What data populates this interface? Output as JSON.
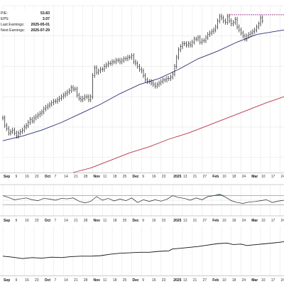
{
  "info": {
    "rows": [
      {
        "label": "P/E:",
        "value": "53.83"
      },
      {
        "label": "EPS:",
        "value": "3.07"
      },
      {
        "label": "Last Earnings:",
        "value": "2025-05-01"
      },
      {
        "label": "Next Earnings:",
        "value": "2025-07-29"
      }
    ]
  },
  "axis_ticks": [
    {
      "t": 0,
      "label": "Sep",
      "bold": true
    },
    {
      "t": 6,
      "label": "9",
      "bold": false
    },
    {
      "t": 11,
      "label": "16",
      "bold": false
    },
    {
      "t": 16,
      "label": "23",
      "bold": false
    },
    {
      "t": 21,
      "label": "Oct",
      "bold": true
    },
    {
      "t": 26,
      "label": "7",
      "bold": false
    },
    {
      "t": 31,
      "label": "14",
      "bold": false
    },
    {
      "t": 36,
      "label": "21",
      "bold": false
    },
    {
      "t": 41,
      "label": "28",
      "bold": false
    },
    {
      "t": 46,
      "label": "Nov",
      "bold": true
    },
    {
      "t": 51,
      "label": "11",
      "bold": false
    },
    {
      "t": 56,
      "label": "18",
      "bold": false
    },
    {
      "t": 61,
      "label": "25",
      "bold": false
    },
    {
      "t": 66,
      "label": "Dec",
      "bold": true
    },
    {
      "t": 71,
      "label": "9",
      "bold": false
    },
    {
      "t": 76,
      "label": "16",
      "bold": false
    },
    {
      "t": 81,
      "label": "23",
      "bold": false
    },
    {
      "t": 87,
      "label": "2025",
      "bold": true
    },
    {
      "t": 92,
      "label": "13",
      "bold": false
    },
    {
      "t": 97,
      "label": "21",
      "bold": false
    },
    {
      "t": 102,
      "label": "27",
      "bold": false
    },
    {
      "t": 107,
      "label": "Feb",
      "bold": true
    },
    {
      "t": 112,
      "label": "10",
      "bold": false
    },
    {
      "t": 117,
      "label": "18",
      "bold": false
    },
    {
      "t": 122,
      "label": "24",
      "bold": false
    },
    {
      "t": 127,
      "label": "Mar",
      "bold": true
    },
    {
      "t": 132,
      "label": "10",
      "bold": false
    },
    {
      "t": 137,
      "label": "17",
      "bold": false
    },
    {
      "t": 142,
      "label": "24",
      "bold": false
    }
  ],
  "colors": {
    "bars": "#111111",
    "sma_short": "#2b2f7a",
    "sma_long": "#c0304a",
    "resistance": "#b0309a",
    "rsi_line": "#222222",
    "rsi_fill": "#3aa84a",
    "grid": "#e6e6e6"
  },
  "chart_data": [
    {
      "type": "ohlc",
      "panel": "price",
      "x_unit": "trading_day",
      "x_range": [
        0,
        144
      ],
      "ylim": [
        0,
        110
      ],
      "grid": true,
      "ohlc_bars": [
        [
          0,
          36
        ],
        [
          1,
          31
        ],
        [
          2,
          29
        ],
        [
          3,
          26
        ],
        [
          4,
          27
        ],
        [
          5,
          28
        ],
        [
          6,
          26
        ],
        [
          7,
          24
        ],
        [
          8,
          26
        ],
        [
          9,
          27
        ],
        [
          10,
          28
        ],
        [
          11,
          30
        ],
        [
          12,
          31
        ],
        [
          13,
          33
        ],
        [
          14,
          35
        ],
        [
          15,
          34
        ],
        [
          16,
          36
        ],
        [
          17,
          37
        ],
        [
          18,
          38
        ],
        [
          19,
          39
        ],
        [
          20,
          40
        ],
        [
          21,
          42
        ],
        [
          22,
          43
        ],
        [
          23,
          44
        ],
        [
          24,
          45
        ],
        [
          25,
          46
        ],
        [
          26,
          47
        ],
        [
          27,
          47
        ],
        [
          28,
          48
        ],
        [
          29,
          49
        ],
        [
          30,
          50
        ],
        [
          31,
          51
        ],
        [
          32,
          52
        ],
        [
          33,
          53
        ],
        [
          34,
          54
        ],
        [
          35,
          56
        ],
        [
          36,
          55
        ],
        [
          37,
          55
        ],
        [
          38,
          51
        ],
        [
          39,
          49
        ],
        [
          40,
          48
        ],
        [
          41,
          49
        ],
        [
          42,
          50
        ],
        [
          43,
          50
        ],
        [
          44,
          48
        ],
        [
          45,
          50
        ],
        [
          46,
          64
        ],
        [
          47,
          69
        ],
        [
          48,
          66
        ],
        [
          49,
          67
        ],
        [
          50,
          68
        ],
        [
          51,
          68
        ],
        [
          52,
          70
        ],
        [
          53,
          71
        ],
        [
          54,
          72
        ],
        [
          55,
          72
        ],
        [
          56,
          73
        ],
        [
          57,
          73
        ],
        [
          58,
          74
        ],
        [
          59,
          74
        ],
        [
          60,
          73
        ],
        [
          61,
          74
        ],
        [
          62,
          75
        ],
        [
          63,
          75
        ],
        [
          64,
          76
        ],
        [
          65,
          76
        ],
        [
          66,
          77
        ],
        [
          67,
          73
        ],
        [
          68,
          72
        ],
        [
          69,
          70
        ],
        [
          70,
          68
        ],
        [
          71,
          67
        ],
        [
          72,
          64
        ],
        [
          73,
          61
        ],
        [
          74,
          60
        ],
        [
          75,
          60
        ],
        [
          76,
          59
        ],
        [
          77,
          58
        ],
        [
          78,
          57
        ],
        [
          79,
          58
        ],
        [
          80,
          59
        ],
        [
          81,
          60
        ],
        [
          82,
          61
        ],
        [
          83,
          61
        ],
        [
          84,
          62
        ],
        [
          85,
          62
        ],
        [
          86,
          63
        ],
        [
          87,
          65
        ],
        [
          88,
          70
        ],
        [
          89,
          76
        ],
        [
          90,
          81
        ],
        [
          91,
          83
        ],
        [
          92,
          85
        ],
        [
          93,
          85
        ],
        [
          94,
          84
        ],
        [
          95,
          85
        ],
        [
          96,
          84
        ],
        [
          97,
          86
        ],
        [
          98,
          88
        ],
        [
          99,
          88
        ],
        [
          100,
          89
        ],
        [
          101,
          86
        ],
        [
          102,
          87
        ],
        [
          103,
          87
        ],
        [
          104,
          89
        ],
        [
          105,
          91
        ],
        [
          106,
          92
        ],
        [
          107,
          93
        ],
        [
          108,
          94
        ],
        [
          109,
          96
        ],
        [
          110,
          100
        ],
        [
          111,
          103
        ],
        [
          112,
          102
        ],
        [
          113,
          100
        ],
        [
          114,
          99
        ],
        [
          115,
          103
        ],
        [
          116,
          100
        ],
        [
          117,
          98
        ],
        [
          118,
          99
        ],
        [
          119,
          101
        ],
        [
          120,
          96
        ],
        [
          121,
          94
        ],
        [
          122,
          92
        ],
        [
          123,
          90
        ],
        [
          124,
          88
        ],
        [
          125,
          90
        ],
        [
          126,
          91
        ],
        [
          127,
          92
        ],
        [
          128,
          93
        ],
        [
          129,
          94
        ],
        [
          130,
          96
        ],
        [
          131,
          98
        ],
        [
          132,
          102
        ],
        [
          133,
          100
        ]
      ],
      "moving_averages": [
        {
          "key": "sma_short",
          "points": [
            [
              0,
              21
            ],
            [
              10,
              24
            ],
            [
              20,
              28
            ],
            [
              30,
              33
            ],
            [
              40,
              39
            ],
            [
              50,
              45
            ],
            [
              60,
              52
            ],
            [
              70,
              58
            ],
            [
              80,
              62
            ],
            [
              90,
              68
            ],
            [
              100,
              75
            ],
            [
              110,
              80
            ],
            [
              120,
              86
            ],
            [
              130,
              91
            ],
            [
              144,
              94
            ]
          ]
        },
        {
          "key": "sma_long",
          "points": [
            [
              36,
              0
            ],
            [
              45,
              3
            ],
            [
              55,
              8
            ],
            [
              65,
              13
            ],
            [
              75,
              17
            ],
            [
              85,
              22
            ],
            [
              95,
              26
            ],
            [
              105,
              31
            ],
            [
              115,
              36
            ],
            [
              125,
              41
            ],
            [
              135,
              46
            ],
            [
              144,
              50
            ]
          ]
        }
      ],
      "resistance": {
        "x": [
          116,
          144
        ],
        "y": 104
      }
    },
    {
      "type": "line",
      "panel": "oscillator",
      "x_unit": "trading_day",
      "ylim": [
        0,
        100
      ],
      "levels": [
        70,
        50,
        30
      ],
      "points": [
        [
          0,
          70
        ],
        [
          3,
          62
        ],
        [
          6,
          52
        ],
        [
          9,
          56
        ],
        [
          12,
          60
        ],
        [
          15,
          52
        ],
        [
          18,
          48
        ],
        [
          21,
          58
        ],
        [
          24,
          55
        ],
        [
          27,
          50
        ],
        [
          30,
          58
        ],
        [
          33,
          56
        ],
        [
          36,
          60
        ],
        [
          39,
          46
        ],
        [
          42,
          38
        ],
        [
          45,
          45
        ],
        [
          48,
          66
        ],
        [
          51,
          50
        ],
        [
          54,
          58
        ],
        [
          57,
          47
        ],
        [
          60,
          55
        ],
        [
          63,
          48
        ],
        [
          66,
          60
        ],
        [
          69,
          40
        ],
        [
          72,
          52
        ],
        [
          75,
          45
        ],
        [
          78,
          52
        ],
        [
          81,
          46
        ],
        [
          84,
          54
        ],
        [
          87,
          70
        ],
        [
          90,
          62
        ],
        [
          93,
          58
        ],
        [
          96,
          50
        ],
        [
          99,
          60
        ],
        [
          102,
          52
        ],
        [
          105,
          66
        ],
        [
          108,
          70
        ],
        [
          111,
          76
        ],
        [
          114,
          64
        ],
        [
          117,
          48
        ],
        [
          120,
          40
        ],
        [
          123,
          36
        ],
        [
          126,
          42
        ],
        [
          129,
          44
        ],
        [
          132,
          48
        ],
        [
          135,
          52
        ],
        [
          138,
          40
        ],
        [
          141,
          46
        ],
        [
          144,
          50
        ]
      ]
    },
    {
      "type": "line",
      "panel": "volume_indicator",
      "x_unit": "trading_day",
      "ylim": [
        0,
        100
      ],
      "points": [
        [
          0,
          40
        ],
        [
          5,
          38
        ],
        [
          10,
          35
        ],
        [
          15,
          37
        ],
        [
          20,
          36
        ],
        [
          25,
          38
        ],
        [
          30,
          37
        ],
        [
          35,
          39
        ],
        [
          40,
          40
        ],
        [
          45,
          40
        ],
        [
          50,
          41
        ],
        [
          55,
          44
        ],
        [
          60,
          46
        ],
        [
          65,
          47
        ],
        [
          70,
          48
        ],
        [
          75,
          48
        ],
        [
          80,
          50
        ],
        [
          85,
          51
        ],
        [
          87,
          55
        ],
        [
          90,
          56
        ],
        [
          95,
          58
        ],
        [
          100,
          60
        ],
        [
          105,
          63
        ],
        [
          110,
          66
        ],
        [
          115,
          67
        ],
        [
          118,
          64
        ],
        [
          122,
          65
        ],
        [
          125,
          62
        ],
        [
          130,
          64
        ],
        [
          135,
          66
        ],
        [
          140,
          68
        ],
        [
          144,
          70
        ]
      ]
    }
  ]
}
